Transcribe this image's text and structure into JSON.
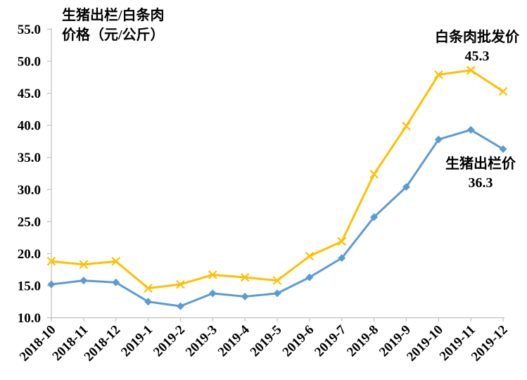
{
  "chart_data": {
    "type": "line",
    "title_lines": [
      "生猪出栏/白条肉",
      "价格（元/公斤）"
    ],
    "categories": [
      "2018-10",
      "2018-11",
      "2018-12",
      "2019-1",
      "2019-2",
      "2019-3",
      "2019-4",
      "2019-5",
      "2019-6",
      "2019-7",
      "2019-8",
      "2019-9",
      "2019-10",
      "2019-11",
      "2019-12"
    ],
    "series": [
      {
        "key": "wholesale-pork",
        "name": "白条肉批发价",
        "color": "#FFC000",
        "marker": "x",
        "values": [
          18.8,
          18.3,
          18.8,
          14.6,
          15.2,
          16.7,
          16.3,
          15.8,
          19.6,
          21.9,
          32.4,
          39.9,
          47.9,
          48.6,
          45.3
        ]
      },
      {
        "key": "live-pig",
        "name": "生猪出栏价",
        "color": "#5B9BD5",
        "marker": "diamond",
        "values": [
          15.2,
          15.8,
          15.5,
          12.5,
          11.8,
          13.8,
          13.3,
          13.8,
          16.3,
          19.3,
          25.7,
          30.4,
          37.8,
          39.3,
          36.3
        ]
      }
    ],
    "ylim": [
      10,
      55
    ],
    "y_tick_step": 5,
    "y_tick_labels": [
      "55.0",
      "50.0",
      "45.0",
      "40.0",
      "35.0",
      "30.0",
      "25.0",
      "20.0",
      "15.0",
      "10.0"
    ],
    "grid": false,
    "legend_position": "none",
    "annotations": [
      {
        "series": "白条肉批发价",
        "label": "白条肉批发价",
        "value_label": "45.3"
      },
      {
        "series": "生猪出栏价",
        "label": "生猪出栏价",
        "value_label": "36.3"
      }
    ],
    "axis_color": "#BFBFBF",
    "text_color": "#000000"
  }
}
